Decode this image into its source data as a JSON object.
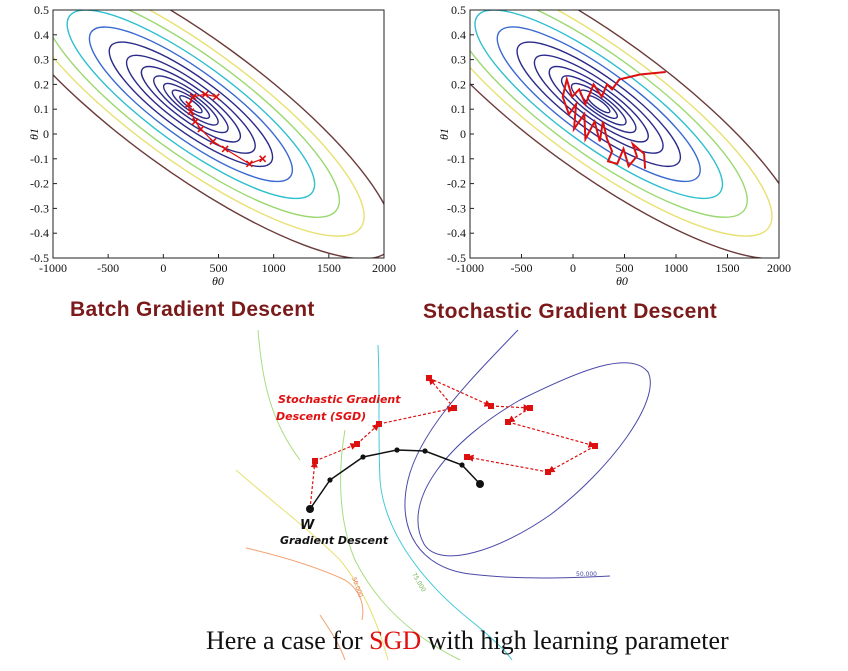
{
  "chart_data": [
    {
      "type": "contour",
      "title": "Batch Gradient Descent",
      "xlabel": "θ0",
      "ylabel": "θ1",
      "xlim": [
        -1000,
        2000
      ],
      "ylim": [
        -0.5,
        0.5
      ],
      "xticks": [
        "-1000",
        "-500",
        "0",
        "500",
        "1000",
        "1500",
        "2000"
      ],
      "yticks": [
        "0.5",
        "0.4",
        "0.3",
        "0.2",
        "0.1",
        "0",
        "-0.1",
        "-0.2",
        "-0.3",
        "-0.4",
        "-0.5"
      ],
      "minimum": {
        "x": 250,
        "y": 0.12
      },
      "path": {
        "style": "markers",
        "points": [
          [
            900,
            -0.1
          ],
          [
            780,
            -0.12
          ],
          [
            560,
            -0.06
          ],
          [
            450,
            -0.03
          ],
          [
            340,
            0.02
          ],
          [
            290,
            0.05
          ],
          [
            250,
            0.09
          ],
          [
            230,
            0.12
          ],
          [
            270,
            0.15
          ],
          [
            380,
            0.16
          ],
          [
            480,
            0.15
          ]
        ]
      }
    },
    {
      "type": "contour",
      "title": "Stochastic Gradient Descent",
      "xlabel": "θ0",
      "ylabel": "θ1",
      "xlim": [
        -1000,
        2000
      ],
      "ylim": [
        -0.5,
        0.5
      ],
      "xticks": [
        "-1000",
        "-500",
        "0",
        "500",
        "1000",
        "1500",
        "2000"
      ],
      "yticks": [
        "0.5",
        "0.4",
        "0.3",
        "0.2",
        "0.1",
        "0",
        "-0.1",
        "-0.2",
        "-0.3",
        "-0.4",
        "-0.5"
      ],
      "minimum": {
        "x": 250,
        "y": 0.12
      },
      "path": {
        "style": "line",
        "points": [
          [
            900,
            0.25
          ],
          [
            650,
            0.24
          ],
          [
            450,
            0.22
          ],
          [
            380,
            0.18
          ],
          [
            330,
            0.2
          ],
          [
            280,
            0.15
          ],
          [
            200,
            0.2
          ],
          [
            120,
            0.12
          ],
          [
            60,
            0.18
          ],
          [
            -10,
            0.15
          ],
          [
            -60,
            0.22
          ],
          [
            -100,
            0.15
          ],
          [
            -40,
            0.08
          ],
          [
            30,
            0.12
          ],
          [
            10,
            0.02
          ],
          [
            110,
            0.08
          ],
          [
            120,
            -0.02
          ],
          [
            210,
            0.05
          ],
          [
            260,
            -0.03
          ],
          [
            290,
            0.05
          ],
          [
            330,
            -0.02
          ],
          [
            380,
            -0.07
          ],
          [
            340,
            -0.11
          ],
          [
            430,
            -0.12
          ],
          [
            490,
            -0.06
          ],
          [
            540,
            -0.13
          ],
          [
            620,
            -0.09
          ],
          [
            580,
            -0.04
          ],
          [
            690,
            -0.08
          ],
          [
            700,
            -0.14
          ]
        ]
      }
    },
    {
      "type": "diagram",
      "points_sgd": [
        [
          310,
          509
        ],
        [
          315,
          461
        ],
        [
          357,
          444
        ],
        [
          379,
          424
        ],
        [
          454,
          408
        ],
        [
          429,
          378
        ],
        [
          491,
          406
        ],
        [
          530,
          408
        ],
        [
          508,
          422
        ],
        [
          595,
          446
        ],
        [
          548,
          472
        ],
        [
          467,
          457
        ]
      ],
      "points_gd": [
        [
          310,
          509
        ],
        [
          330,
          480
        ],
        [
          363,
          457
        ],
        [
          397,
          450
        ],
        [
          425,
          451
        ],
        [
          462,
          465
        ],
        [
          480,
          484
        ]
      ],
      "contour_labels": [
        "50.000",
        "75.000",
        "50.000"
      ]
    }
  ],
  "panels": {
    "batch_title": "Batch Gradient Descent",
    "sgd_title": "Stochastic Gradient Descent"
  },
  "diagram": {
    "sgd_label_line1": "Stochastic Gradient",
    "sgd_label_line2": "Descent (SGD)",
    "w_label": "W",
    "gd_label": "Gradient Descent",
    "contour_label_1": "50.000",
    "contour_label_2": "75.000",
    "contour_label_3": "50.000"
  },
  "caption": {
    "before": "Here a case for ",
    "highlight": "SGD",
    "after": " with high learning parameter"
  },
  "colors": {
    "contour_inner": "#2a2a8a",
    "contour_mid": "#3a6ad0",
    "contour_cyan": "#2fbfcf",
    "contour_green": "#9ad870",
    "contour_yellow": "#e8e070",
    "contour_outer": "#6b3a3a",
    "path_red": "#dd1010",
    "title_red": "#7b1a1a"
  }
}
